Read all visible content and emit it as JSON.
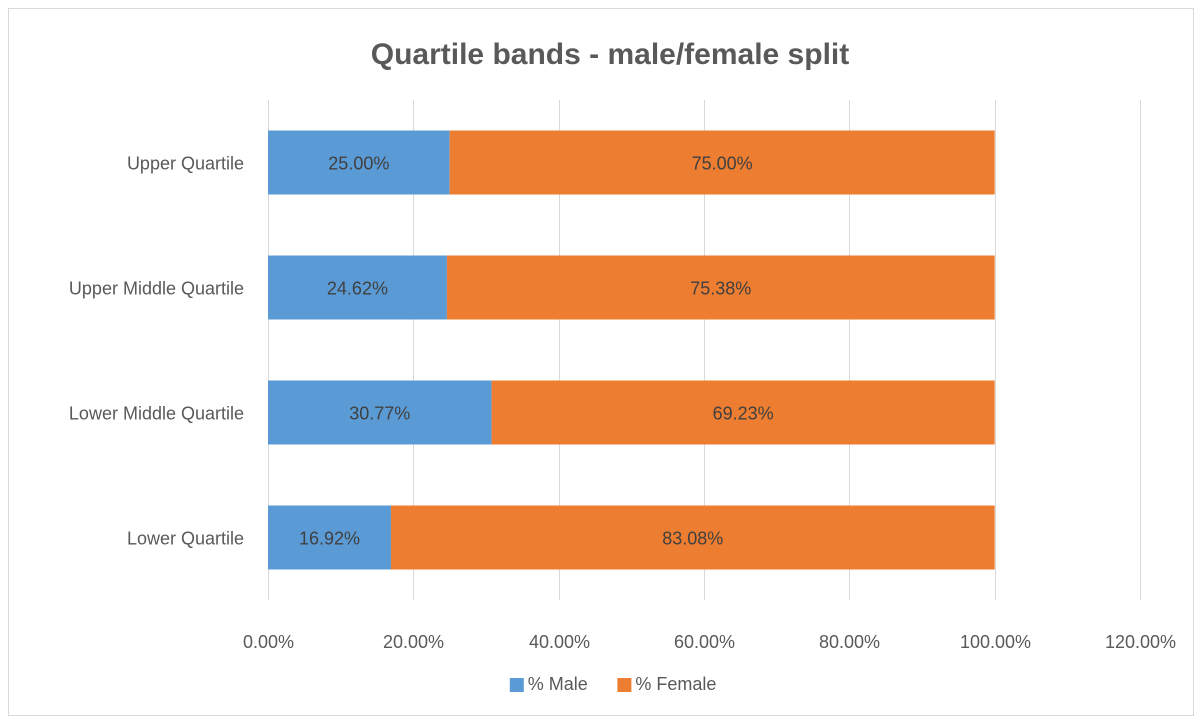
{
  "chart_data": {
    "type": "bar",
    "orientation": "horizontal",
    "stacked": true,
    "title": "Quartile bands - male/female split",
    "categories": [
      "Upper Quartile",
      "Upper Middle Quartile",
      "Lower Middle Quartile",
      "Lower Quartile"
    ],
    "series": [
      {
        "name": "% Male",
        "color": "#5b9bd5",
        "values": [
          25.0,
          24.62,
          30.77,
          16.92
        ],
        "labels": [
          "25.00%",
          "24.62%",
          "30.77%",
          "16.92%"
        ]
      },
      {
        "name": "% Female",
        "color": "#ed7d31",
        "values": [
          75.0,
          75.38,
          69.23,
          83.08
        ],
        "labels": [
          "75.00%",
          "75.38%",
          "69.23%",
          "83.08%"
        ]
      }
    ],
    "xlim": [
      0,
      120
    ],
    "xticks": [
      0,
      20,
      40,
      60,
      80,
      100,
      120
    ],
    "xtick_labels": [
      "0.00%",
      "20.00%",
      "40.00%",
      "60.00%",
      "80.00%",
      "100.00%",
      "120.00%"
    ],
    "xlabel": "",
    "ylabel": "",
    "grid": true,
    "legend_position": "bottom"
  }
}
